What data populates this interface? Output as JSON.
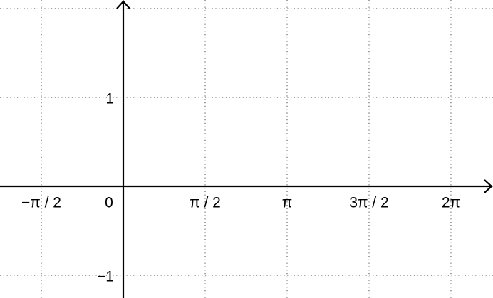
{
  "chart_data": {
    "type": "axes",
    "xlim": [
      -2.3633,
      7.0895
    ],
    "ylim": [
      -1.256,
      2.096
    ],
    "xticks": [
      {
        "value": -1.5708,
        "label": "−π / 2"
      },
      0,
      {
        "value": 1.5708,
        "label": "π / 2"
      },
      {
        "value": 3.1416,
        "label": "π"
      },
      {
        "value": 4.7124,
        "label": "3π / 2"
      },
      {
        "value": 6.2832,
        "label": "2π"
      }
    ],
    "yticks": [
      {
        "value": -1,
        "label": "−1"
      },
      1
    ],
    "ygrid": [
      -1,
      0,
      1,
      2
    ],
    "grid": true
  }
}
